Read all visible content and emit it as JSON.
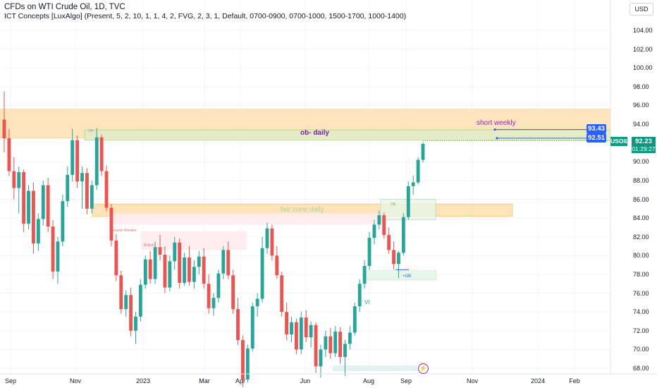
{
  "header": {
    "title": "CFDs on WTI Crude Oil, 1D, TVC",
    "indicator": "ICT Concepts [LuxAlgo] (Present, 5, 2, 10, 1, 1, 4, 2, FVG, 2, 3, 1, Default, 0700-0900, 0700-1000, 1500-1700, 1000-1400)"
  },
  "price_axis": {
    "currency": "USD",
    "ticks": [
      "104.00",
      "102.00",
      "100.00",
      "98.00",
      "96.00",
      "94.00",
      "92.00",
      "90.00",
      "88.00",
      "86.00",
      "84.00",
      "82.00",
      "80.00",
      "78.00",
      "76.00",
      "74.00",
      "72.00",
      "70.00",
      "68.00"
    ]
  },
  "time_axis": {
    "labels": [
      "Sep",
      "Nov",
      "2023",
      "Mar",
      "Apr",
      "Jun",
      "Aug",
      "Sep",
      "Nov",
      "2024",
      "Feb"
    ]
  },
  "price_tags": {
    "level_high": "93.43",
    "level_low": "92.51",
    "symbol": "USOIL",
    "last_price": "92.23",
    "countdown": "01:29:27"
  },
  "annotations": {
    "ob_daily": "ob- daily",
    "short_weekly": "short weekly",
    "fair_zone_daily": "fair zone daily",
    "bearish_breaker": "Bearish Breaker",
    "bullish": "Bullish",
    "ob_small": "OB",
    "ob_green": "OB",
    "plus_ob": "+OB",
    "vi": "VI"
  },
  "colors": {
    "up": "#26a69a",
    "down": "#ef5350",
    "orange_zone": "#ffcc80",
    "green_zone": "#c8e6c9",
    "red_zone": "#ffcdd2",
    "level_line": "#2962ff",
    "last_price": "#089981"
  },
  "chart_data": {
    "type": "candlestick",
    "price_range": [
      67,
      106
    ],
    "zones": [
      {
        "name": "short weekly",
        "from": 92.5,
        "to": 95.6
      },
      {
        "name": "ob- daily",
        "from": 92.3,
        "to": 93.4
      },
      {
        "name": "fair zone daily",
        "from": 84.2,
        "to": 85.5
      },
      {
        "name": "Bearish Breaker",
        "from": 83.3,
        "to": 84.5
      },
      {
        "name": "Bullish",
        "from": 80.6,
        "to": 82.6
      },
      {
        "name": "+OB",
        "from": 77.4,
        "to": 78.4
      }
    ],
    "levels": [
      93.43,
      92.51
    ],
    "last": 92.23,
    "candles": [
      [
        94.5,
        97.5,
        91.0,
        92.5
      ],
      [
        92.5,
        93.5,
        88.5,
        89.0
      ],
      [
        89.0,
        90.5,
        86.0,
        87.2
      ],
      [
        87.2,
        89.5,
        84.5,
        88.9
      ],
      [
        88.9,
        89.2,
        82.5,
        83.4
      ],
      [
        83.4,
        87.5,
        82.8,
        86.9
      ],
      [
        86.9,
        87.8,
        80.2,
        81.3
      ],
      [
        81.3,
        84.5,
        80.5,
        83.9
      ],
      [
        83.9,
        88.0,
        83.2,
        87.5
      ],
      [
        87.5,
        88.3,
        82.5,
        83.1
      ],
      [
        83.1,
        83.8,
        77.5,
        78.3
      ],
      [
        78.3,
        82.0,
        77.0,
        81.5
      ],
      [
        81.5,
        86.5,
        81.0,
        85.8
      ],
      [
        85.8,
        89.5,
        85.2,
        88.6
      ],
      [
        88.6,
        93.5,
        87.9,
        92.3
      ],
      [
        92.3,
        92.8,
        87.2,
        87.9
      ],
      [
        87.9,
        89.5,
        85.0,
        88.8
      ],
      [
        88.8,
        89.3,
        84.4,
        85.0
      ],
      [
        85.0,
        88.0,
        84.5,
        87.5
      ],
      [
        87.5,
        93.6,
        87.0,
        92.6
      ],
      [
        92.6,
        92.9,
        88.5,
        89.0
      ],
      [
        89.0,
        89.6,
        84.7,
        85.1
      ],
      [
        85.1,
        85.5,
        81.0,
        81.6
      ],
      [
        81.6,
        82.3,
        77.3,
        77.9
      ],
      [
        77.9,
        78.4,
        73.8,
        74.3
      ],
      [
        74.3,
        76.3,
        73.5,
        75.8
      ],
      [
        75.8,
        76.6,
        71.4,
        72.0
      ],
      [
        72.0,
        74.0,
        70.6,
        73.5
      ],
      [
        73.5,
        77.5,
        73.0,
        76.9
      ],
      [
        76.9,
        80.0,
        76.5,
        79.6
      ],
      [
        79.6,
        80.5,
        77.0,
        77.5
      ],
      [
        77.5,
        81.5,
        77.0,
        80.9
      ],
      [
        80.9,
        82.2,
        79.5,
        80.1
      ],
      [
        80.1,
        81.0,
        76.0,
        76.6
      ],
      [
        76.6,
        80.0,
        76.2,
        79.4
      ],
      [
        79.4,
        82.0,
        78.5,
        81.4
      ],
      [
        81.4,
        81.8,
        76.5,
        77.1
      ],
      [
        77.1,
        80.3,
        76.8,
        79.8
      ],
      [
        79.8,
        81.0,
        76.8,
        77.2
      ],
      [
        77.2,
        79.5,
        76.5,
        78.8
      ],
      [
        78.8,
        80.5,
        78.0,
        79.9
      ],
      [
        79.9,
        80.8,
        76.5,
        77.0
      ],
      [
        77.0,
        78.0,
        73.8,
        74.4
      ],
      [
        74.4,
        76.0,
        73.6,
        75.5
      ],
      [
        75.5,
        78.5,
        75.0,
        78.1
      ],
      [
        78.1,
        81.0,
        77.5,
        80.6
      ],
      [
        80.6,
        81.5,
        77.5,
        77.9
      ],
      [
        77.9,
        78.5,
        73.8,
        74.3
      ],
      [
        74.3,
        75.5,
        70.5,
        71.0
      ],
      [
        71.0,
        71.5,
        66.0,
        66.8
      ],
      [
        66.8,
        70.5,
        66.5,
        70.1
      ],
      [
        70.1,
        75.0,
        69.8,
        74.6
      ],
      [
        74.6,
        76.0,
        73.5,
        75.4
      ],
      [
        75.4,
        82.0,
        75.0,
        80.8
      ],
      [
        80.8,
        83.5,
        80.2,
        82.9
      ],
      [
        82.9,
        83.3,
        79.5,
        80.0
      ],
      [
        80.0,
        81.0,
        77.5,
        77.9
      ],
      [
        77.9,
        78.3,
        73.5,
        74.0
      ],
      [
        74.0,
        75.0,
        71.0,
        71.6
      ],
      [
        71.6,
        73.5,
        70.8,
        72.9
      ],
      [
        72.9,
        73.3,
        69.5,
        70.0
      ],
      [
        70.0,
        74.0,
        69.5,
        73.4
      ],
      [
        73.4,
        74.2,
        70.8,
        71.3
      ],
      [
        71.3,
        73.0,
        70.2,
        72.6
      ],
      [
        72.6,
        72.9,
        67.5,
        68.2
      ],
      [
        68.2,
        70.5,
        67.0,
        70.0
      ],
      [
        70.0,
        72.0,
        69.2,
        71.4
      ],
      [
        71.4,
        72.3,
        69.0,
        69.6
      ],
      [
        69.6,
        72.5,
        69.2,
        71.9
      ],
      [
        71.9,
        72.4,
        68.5,
        69.2
      ],
      [
        69.2,
        71.0,
        67.2,
        70.6
      ],
      [
        70.6,
        72.5,
        70.0,
        71.8
      ],
      [
        71.8,
        75.0,
        71.5,
        74.6
      ],
      [
        74.6,
        77.5,
        74.0,
        77.0
      ],
      [
        77.0,
        79.5,
        76.5,
        78.9
      ],
      [
        78.9,
        82.5,
        78.5,
        81.9
      ],
      [
        81.9,
        83.8,
        81.2,
        83.3
      ],
      [
        83.3,
        84.8,
        82.8,
        84.3
      ],
      [
        84.3,
        84.6,
        81.8,
        82.2
      ],
      [
        82.2,
        83.0,
        80.2,
        80.6
      ],
      [
        80.6,
        81.5,
        78.5,
        79.1
      ],
      [
        79.1,
        80.5,
        77.6,
        80.3
      ],
      [
        80.3,
        84.5,
        80.0,
        84.1
      ],
      [
        84.1,
        87.9,
        83.8,
        87.4
      ],
      [
        87.4,
        88.5,
        86.5,
        87.8
      ],
      [
        87.8,
        90.5,
        87.6,
        90.2
      ],
      [
        90.2,
        92.1,
        89.9,
        91.9
      ]
    ]
  }
}
